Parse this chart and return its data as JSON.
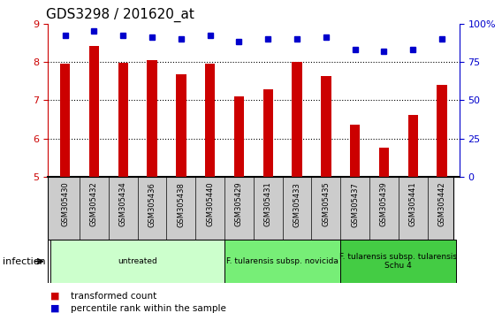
{
  "title": "GDS3298 / 201620_at",
  "samples": [
    "GSM305430",
    "GSM305432",
    "GSM305434",
    "GSM305436",
    "GSM305438",
    "GSM305440",
    "GSM305429",
    "GSM305431",
    "GSM305433",
    "GSM305435",
    "GSM305437",
    "GSM305439",
    "GSM305441",
    "GSM305442"
  ],
  "transformed_count": [
    7.95,
    8.42,
    7.98,
    8.05,
    7.68,
    7.96,
    7.1,
    7.28,
    8.0,
    7.62,
    6.35,
    5.75,
    6.62,
    7.4
  ],
  "percentile_rank": [
    92,
    95,
    92,
    91,
    90,
    92,
    88,
    90,
    90,
    91,
    83,
    82,
    83,
    90
  ],
  "bar_color": "#cc0000",
  "dot_color": "#0000cc",
  "ylim_left": [
    5,
    9
  ],
  "ylim_right": [
    0,
    100
  ],
  "yticks_left": [
    5,
    6,
    7,
    8,
    9
  ],
  "yticks_right": [
    0,
    25,
    50,
    75,
    100
  ],
  "ytick_labels_right": [
    "0",
    "25",
    "50",
    "75",
    "100%"
  ],
  "group_ranges": [
    {
      "start": 0,
      "end": 5,
      "label": "untreated",
      "color": "#ccffcc"
    },
    {
      "start": 6,
      "end": 9,
      "label": "F. tularensis subsp. novicida",
      "color": "#77ee77"
    },
    {
      "start": 10,
      "end": 13,
      "label": "F. tularensis subsp. tularensis\nSchu 4",
      "color": "#44cc44"
    }
  ],
  "infection_label": "infection",
  "legend_bar_label": "transformed count",
  "legend_dot_label": "percentile rank within the sample",
  "background_color": "#ffffff",
  "sample_bg_color": "#cccccc",
  "grid_color": "#000000",
  "title_fontsize": 11,
  "tick_fontsize": 7,
  "bar_width": 0.35
}
